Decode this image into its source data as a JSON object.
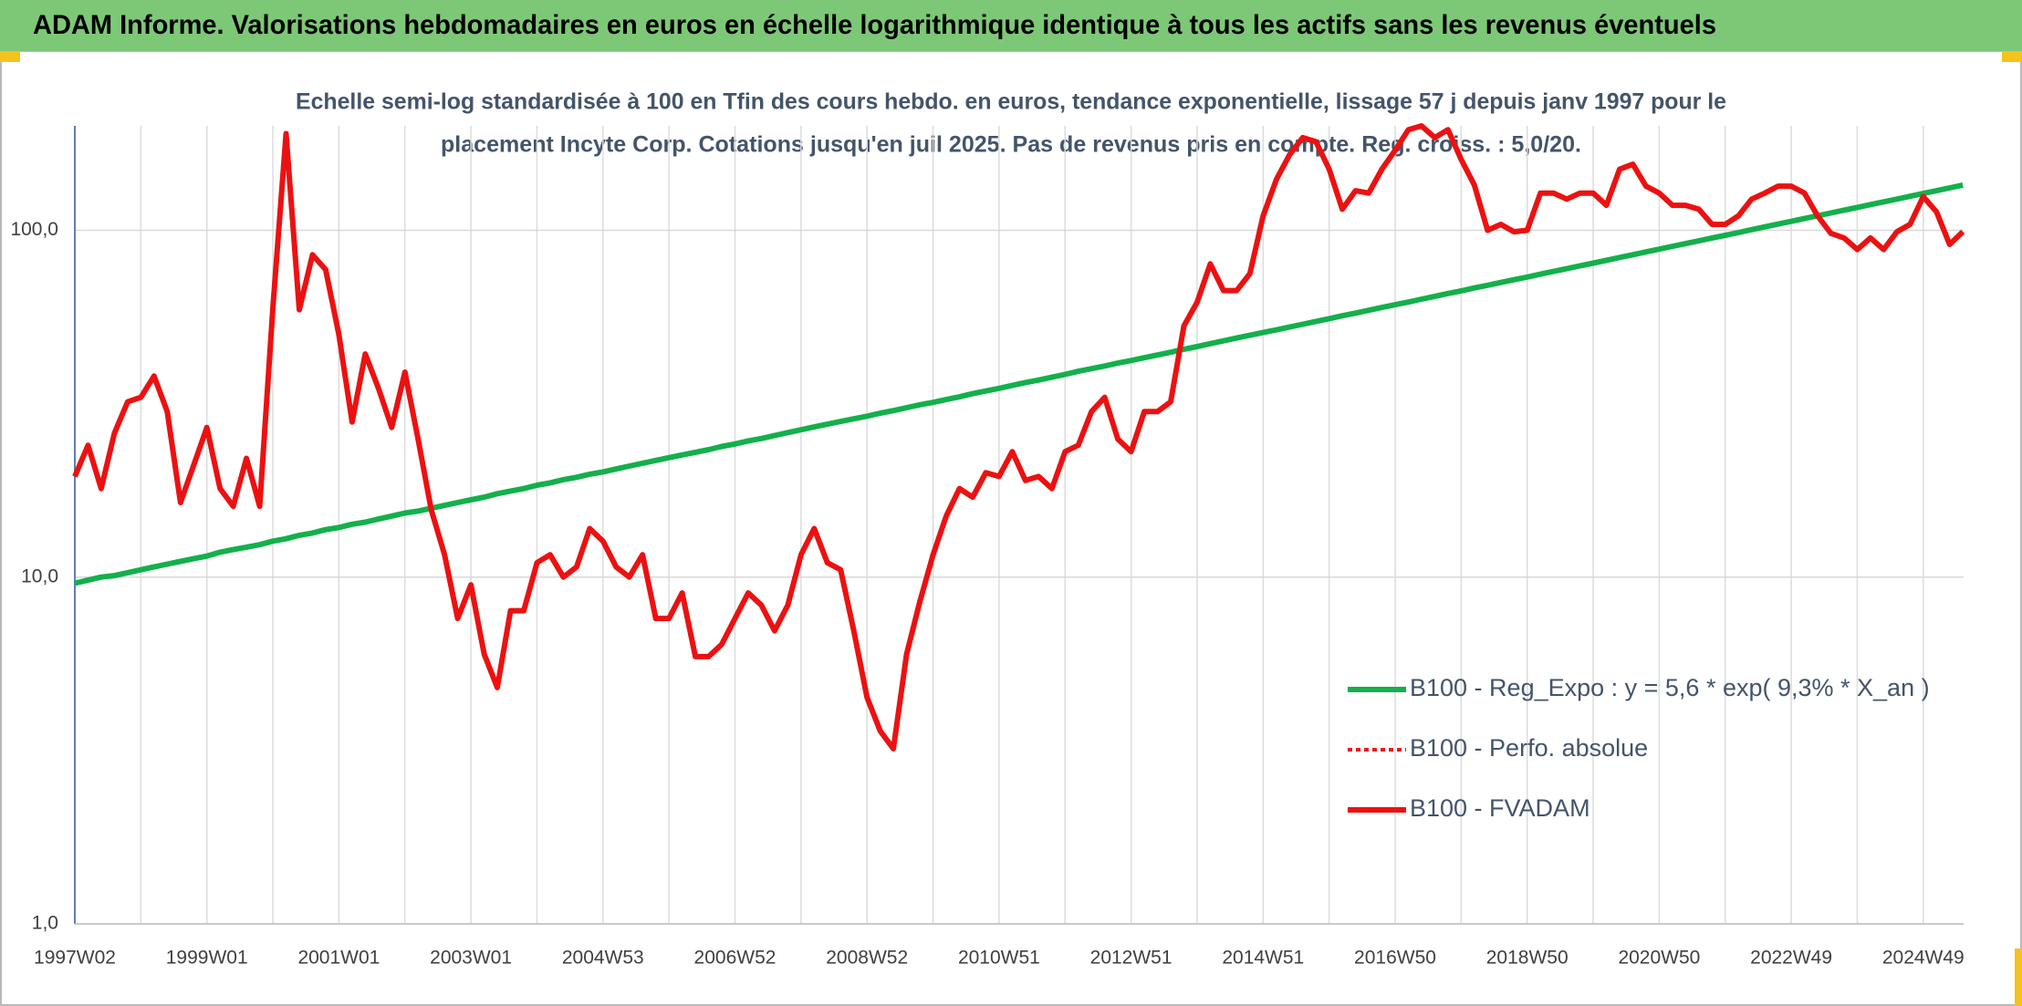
{
  "chart_data": {
    "type": "line",
    "title": "ADAM Informe. Valorisations hebdomadaires en euros en échelle logarithmique identique à tous les actifs sans les revenus éventuels",
    "subtitle": [
      "Echelle semi-log standardisée à 100 en Tfin des cours hebdo. en euros, tendance exponentielle, lissage 57 j depuis janv 1997 pour le",
      "placement Incyte Corp. Cotations jusqu'en juil 2025. Pas de revenus pris en compte. Reg. croiss. : 5,0/20."
    ],
    "log_scale": true,
    "grid": true,
    "legend_position": "right",
    "ylim": [
      1,
      200
    ],
    "yticks": [
      {
        "value": 1,
        "label": "1,0"
      },
      {
        "value": 10,
        "label": "10,0"
      },
      {
        "value": 100,
        "label": "100,0"
      }
    ],
    "categories": [
      "1997W02",
      null,
      null,
      null,
      null,
      null,
      null,
      null,
      null,
      null,
      "1999W01",
      null,
      null,
      null,
      null,
      null,
      null,
      null,
      null,
      null,
      "2001W01",
      null,
      null,
      null,
      null,
      null,
      null,
      null,
      null,
      null,
      "2003W01",
      null,
      null,
      null,
      null,
      null,
      null,
      null,
      null,
      null,
      "2004W53",
      null,
      null,
      null,
      null,
      null,
      null,
      null,
      null,
      null,
      "2006W52",
      null,
      null,
      null,
      null,
      null,
      null,
      null,
      null,
      null,
      "2008W52",
      null,
      null,
      null,
      null,
      null,
      null,
      null,
      null,
      null,
      "2010W51",
      null,
      null,
      null,
      null,
      null,
      null,
      null,
      null,
      null,
      "2012W51",
      null,
      null,
      null,
      null,
      null,
      null,
      null,
      null,
      null,
      "2014W51",
      null,
      null,
      null,
      null,
      null,
      null,
      null,
      null,
      null,
      "2016W50",
      null,
      null,
      null,
      null,
      null,
      null,
      null,
      null,
      null,
      "2018W50",
      null,
      null,
      null,
      null,
      null,
      null,
      null,
      null,
      null,
      "2020W50",
      null,
      null,
      null,
      null,
      null,
      null,
      null,
      null,
      null,
      "2022W49",
      null,
      null,
      null,
      null,
      null,
      null,
      null,
      null,
      null,
      "2024W49",
      null,
      null,
      null
    ],
    "series": [
      {
        "name": "B100 - Reg_Expo : y = 5,6 * exp( 9,3% *  X_an )",
        "color": "#13b04b",
        "style": "solid",
        "values": [
          9.6,
          9.8,
          10.0,
          10.1,
          10.3,
          10.5,
          10.7,
          10.9,
          11.1,
          11.3,
          11.5,
          11.8,
          12.0,
          12.2,
          12.4,
          12.7,
          12.9,
          13.2,
          13.4,
          13.7,
          13.9,
          14.2,
          14.4,
          14.7,
          15.0,
          15.3,
          15.5,
          15.8,
          16.1,
          16.4,
          16.7,
          17.0,
          17.4,
          17.7,
          18.0,
          18.4,
          18.7,
          19.1,
          19.4,
          19.8,
          20.1,
          20.5,
          20.9,
          21.3,
          21.7,
          22.1,
          22.5,
          22.9,
          23.3,
          23.8,
          24.2,
          24.7,
          25.1,
          25.6,
          26.1,
          26.6,
          27.1,
          27.6,
          28.1,
          28.6,
          29.1,
          29.7,
          30.2,
          30.8,
          31.4,
          31.9,
          32.5,
          33.1,
          33.8,
          34.4,
          35.0,
          35.7,
          36.4,
          37.0,
          37.7,
          38.4,
          39.2,
          39.9,
          40.6,
          41.4,
          42.1,
          42.9,
          43.7,
          44.5,
          45.4,
          46.2,
          47.1,
          48.0,
          48.9,
          49.8,
          50.7,
          51.6,
          52.6,
          53.6,
          54.6,
          55.6,
          56.7,
          57.7,
          58.8,
          59.9,
          61.0,
          62.1,
          63.3,
          64.5,
          65.7,
          66.9,
          68.2,
          69.4,
          70.7,
          72.0,
          73.3,
          74.7,
          76.1,
          77.5,
          79.0,
          80.4,
          81.9,
          83.5,
          85.0,
          86.6,
          88.2,
          89.9,
          91.5,
          93.2,
          95.0,
          96.7,
          98.5,
          100.4,
          102.3,
          104.2,
          106.1,
          108.1,
          110.1,
          112.2,
          114.3,
          116.4,
          118.6,
          120.8,
          123.0,
          125.3,
          127.7,
          130.0,
          132.5,
          135.0
        ]
      },
      {
        "name": "B100 - Perfo. absolue",
        "color": "#e31c1c",
        "style": "dotted"
      },
      {
        "name": "B100 - FVADAM",
        "color": "#ec1111",
        "style": "solid",
        "values": [
          19.5,
          24,
          18,
          26,
          32,
          33,
          38,
          30,
          16.4,
          21,
          27,
          18,
          16,
          22,
          16,
          60,
          190,
          59,
          85,
          77,
          50,
          28,
          44,
          35,
          27,
          39,
          25,
          15.6,
          11.6,
          7.6,
          9.5,
          6,
          4.8,
          8,
          8,
          11,
          11.6,
          10,
          10.7,
          13.8,
          12.7,
          10.7,
          10,
          11.6,
          7.6,
          7.6,
          9,
          5.9,
          5.9,
          6.4,
          7.6,
          9,
          8.3,
          7,
          8.3,
          11.6,
          13.8,
          11,
          10.5,
          7,
          4.5,
          3.6,
          3.2,
          6,
          8.5,
          11.6,
          15,
          18,
          17,
          20,
          19.5,
          23,
          19,
          19.5,
          18,
          23,
          24,
          30,
          33,
          25,
          23,
          30,
          30,
          32,
          53,
          62,
          80,
          67,
          67,
          75,
          110,
          140,
          165,
          185,
          180,
          150,
          115,
          130,
          128,
          150,
          170,
          195,
          200,
          185,
          195,
          160,
          135,
          100,
          104,
          99,
          100,
          128,
          128,
          123,
          128,
          128,
          118,
          150,
          155,
          134,
          128,
          118,
          118,
          115,
          104,
          104,
          110,
          123,
          128,
          134,
          134,
          128,
          110,
          98,
          95,
          88,
          95,
          88,
          99,
          104,
          125,
          113,
          91,
          99
        ]
      }
    ]
  }
}
